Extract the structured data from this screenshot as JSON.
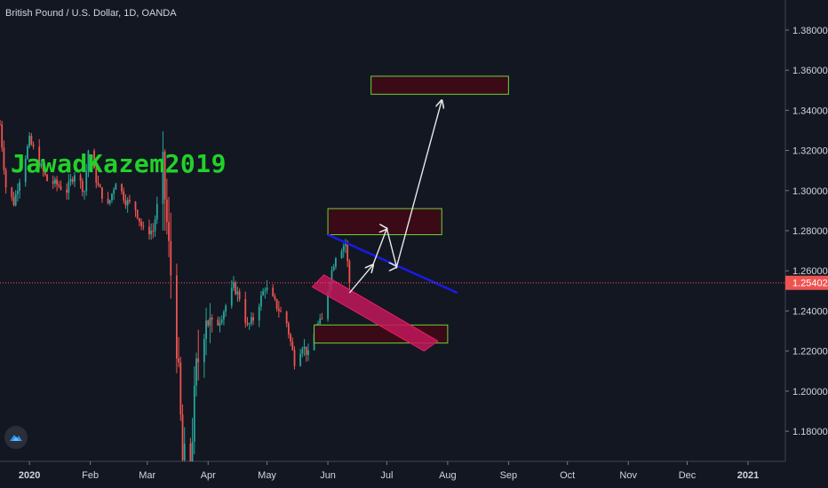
{
  "title": "British Pound / U.S. Dollar, 1D, OANDA",
  "watermark": "JawadKazem2019",
  "icons": {
    "logo": "tradingview-logo-icon"
  },
  "colors": {
    "background": "#131722",
    "up": "#26a69a",
    "down": "#ef5350",
    "zone_fill": "#3b0a17",
    "zone_border": "#6cd33a",
    "trendline": "#1a1ae6",
    "channel_fill": "#c2185b",
    "arrow": "#e8e8e8",
    "price_line": "#ef5350",
    "price_badge": "#ef5350"
  },
  "chart_data": {
    "type": "candlestick",
    "symbol": "British Pound / U.S. Dollar",
    "interval": "1D",
    "source": "OANDA",
    "ylim": [
      1.165,
      1.395
    ],
    "yticks": [
      "1.38000",
      "1.36000",
      "1.34000",
      "1.32000",
      "1.30000",
      "1.28000",
      "1.26000",
      "1.24000",
      "1.22000",
      "1.20000",
      "1.18000"
    ],
    "ytick_values": [
      1.38,
      1.36,
      1.34,
      1.32,
      1.3,
      1.28,
      1.26,
      1.24,
      1.22,
      1.2,
      1.18
    ],
    "xlim": [
      "2019-12-17",
      "2021-01-20"
    ],
    "xticks": [
      {
        "label": "2020",
        "date": "2020-01-01"
      },
      {
        "label": "Feb",
        "date": "2020-02-01"
      },
      {
        "label": "Mar",
        "date": "2020-03-01"
      },
      {
        "label": "Apr",
        "date": "2020-04-01"
      },
      {
        "label": "May",
        "date": "2020-05-01"
      },
      {
        "label": "Jun",
        "date": "2020-06-01"
      },
      {
        "label": "Jul",
        "date": "2020-07-01"
      },
      {
        "label": "Aug",
        "date": "2020-08-01"
      },
      {
        "label": "Sep",
        "date": "2020-09-01"
      },
      {
        "label": "Oct",
        "date": "2020-10-01"
      },
      {
        "label": "Nov",
        "date": "2020-11-01"
      },
      {
        "label": "Dec",
        "date": "2020-12-01"
      },
      {
        "label": "2021",
        "date": "2021-01-01"
      }
    ],
    "current_price": 1.25402,
    "current_price_label": "1.25402",
    "price_path": [
      [
        "2019-12-17",
        1.333
      ],
      [
        "2019-12-20",
        1.302
      ],
      [
        "2019-12-24",
        1.294
      ],
      [
        "2019-12-27",
        1.306
      ],
      [
        "2020-01-01",
        1.325
      ],
      [
        "2020-01-06",
        1.314
      ],
      [
        "2020-01-10",
        1.305
      ],
      [
        "2020-01-15",
        1.303
      ],
      [
        "2020-01-20",
        1.3
      ],
      [
        "2020-01-24",
        1.309
      ],
      [
        "2020-01-29",
        1.3
      ],
      [
        "2020-01-31",
        1.32
      ],
      [
        "2020-02-05",
        1.302
      ],
      [
        "2020-02-10",
        1.292
      ],
      [
        "2020-02-14",
        1.305
      ],
      [
        "2020-02-19",
        1.295
      ],
      [
        "2020-02-24",
        1.291
      ],
      [
        "2020-02-28",
        1.28
      ],
      [
        "2020-03-04",
        1.28
      ],
      [
        "2020-03-09",
        1.31
      ],
      [
        "2020-03-12",
        1.27
      ],
      [
        "2020-03-16",
        1.225
      ],
      [
        "2020-03-19",
        1.165
      ],
      [
        "2020-03-23",
        1.165
      ],
      [
        "2020-03-26",
        1.21
      ],
      [
        "2020-03-31",
        1.24
      ],
      [
        "2020-04-03",
        1.228
      ],
      [
        "2020-04-08",
        1.238
      ],
      [
        "2020-04-14",
        1.252
      ],
      [
        "2020-04-17",
        1.247
      ],
      [
        "2020-04-21",
        1.232
      ],
      [
        "2020-04-24",
        1.236
      ],
      [
        "2020-04-30",
        1.252
      ],
      [
        "2020-05-05",
        1.244
      ],
      [
        "2020-05-11",
        1.234
      ],
      [
        "2020-05-15",
        1.215
      ],
      [
        "2020-05-19",
        1.223
      ],
      [
        "2020-05-22",
        1.218
      ],
      [
        "2020-05-26",
        1.232
      ],
      [
        "2020-05-29",
        1.235
      ],
      [
        "2020-06-02",
        1.256
      ],
      [
        "2020-06-05",
        1.268
      ],
      [
        "2020-06-10",
        1.274
      ],
      [
        "2020-06-12",
        1.254
      ]
    ],
    "zones": [
      {
        "name": "target-zone",
        "start": "2020-06-23",
        "end": "2020-09-01",
        "low": 1.348,
        "high": 1.357
      },
      {
        "name": "resistance-zone",
        "start": "2020-06-01",
        "end": "2020-07-29",
        "low": 1.278,
        "high": 1.291
      },
      {
        "name": "support-zone",
        "start": "2020-05-25",
        "end": "2020-08-01",
        "low": 1.224,
        "high": 1.233
      }
    ],
    "trendline": {
      "start": [
        "2020-06-01",
        1.278
      ],
      "end": [
        "2020-08-06",
        1.249
      ]
    },
    "channel": [
      [
        "2020-05-24",
        1.252
      ],
      [
        "2020-05-30",
        1.258
      ],
      [
        "2020-07-27",
        1.225
      ],
      [
        "2020-07-20",
        1.22
      ]
    ],
    "arrows": [
      [
        [
          "2020-06-12",
          1.249
        ],
        [
          "2020-06-24",
          1.263
        ]
      ],
      [
        [
          "2020-06-24",
          1.263
        ],
        [
          "2020-07-01",
          1.281
        ],
        [
          "2020-07-06",
          1.262
        ],
        [
          "2020-07-29",
          1.345
        ]
      ]
    ]
  }
}
